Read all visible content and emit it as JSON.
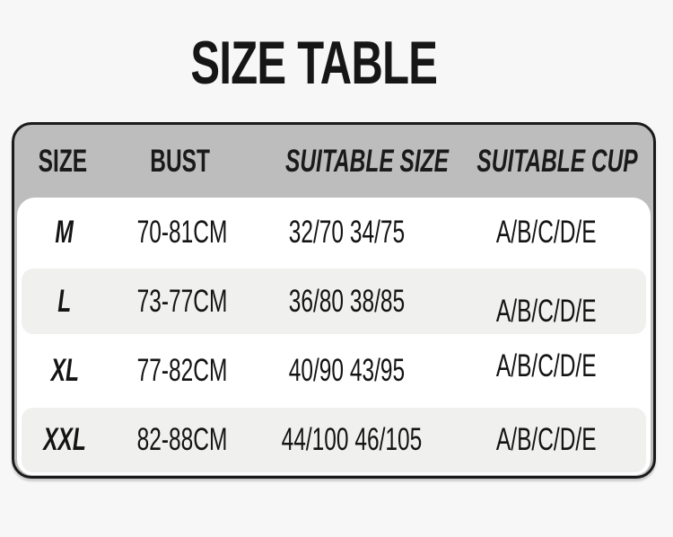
{
  "theme": {
    "page_bg": "#f6f7f6",
    "title_color": "#161616",
    "table_border": "#1b1b1b",
    "header_bg": "#bdbdbd",
    "header_text": "#1a1a1a",
    "body_bg": "#ffffff",
    "stripe_bg": "#f0f1ef",
    "cell_text": "#141414"
  },
  "title": "SIZE TABLE",
  "table": {
    "columns": [
      {
        "label": "SIZE"
      },
      {
        "label": "BUST"
      },
      {
        "label": "SUITABLE SIZE"
      },
      {
        "label": "SUITABLE CUP"
      }
    ],
    "rows": [
      {
        "size": "M",
        "bust": "70-81CM",
        "suitable_size": "32/70 34/75",
        "suitable_cup": "A/B/C/D/E"
      },
      {
        "size": "L",
        "bust": "73-77CM",
        "suitable_size": "36/80 38/85",
        "suitable_cup": "A/B/C/D/E"
      },
      {
        "size": "XL",
        "bust": "77-82CM",
        "suitable_size": "40/90 43/95",
        "suitable_cup": "A/B/C/D/E"
      },
      {
        "size": "XXL",
        "bust": "82-88CM",
        "suitable_size": "44/100 46/105",
        "suitable_cup": "A/B/C/D/E"
      }
    ]
  },
  "chart_data": {
    "type": "table",
    "title": "SIZE TABLE",
    "columns": [
      "SIZE",
      "BUST",
      "SUITABLE SIZE",
      "SUITABLE CUP"
    ],
    "rows": [
      [
        "M",
        "70-81CM",
        "32/70 34/75",
        "A/B/C/D/E"
      ],
      [
        "L",
        "73-77CM",
        "36/80 38/85",
        "A/B/C/D/E"
      ],
      [
        "XL",
        "77-82CM",
        "40/90 43/95",
        "A/B/C/D/E"
      ],
      [
        "XXL",
        "82-88CM",
        "44/100 46/105",
        "A/B/C/D/E"
      ]
    ]
  }
}
